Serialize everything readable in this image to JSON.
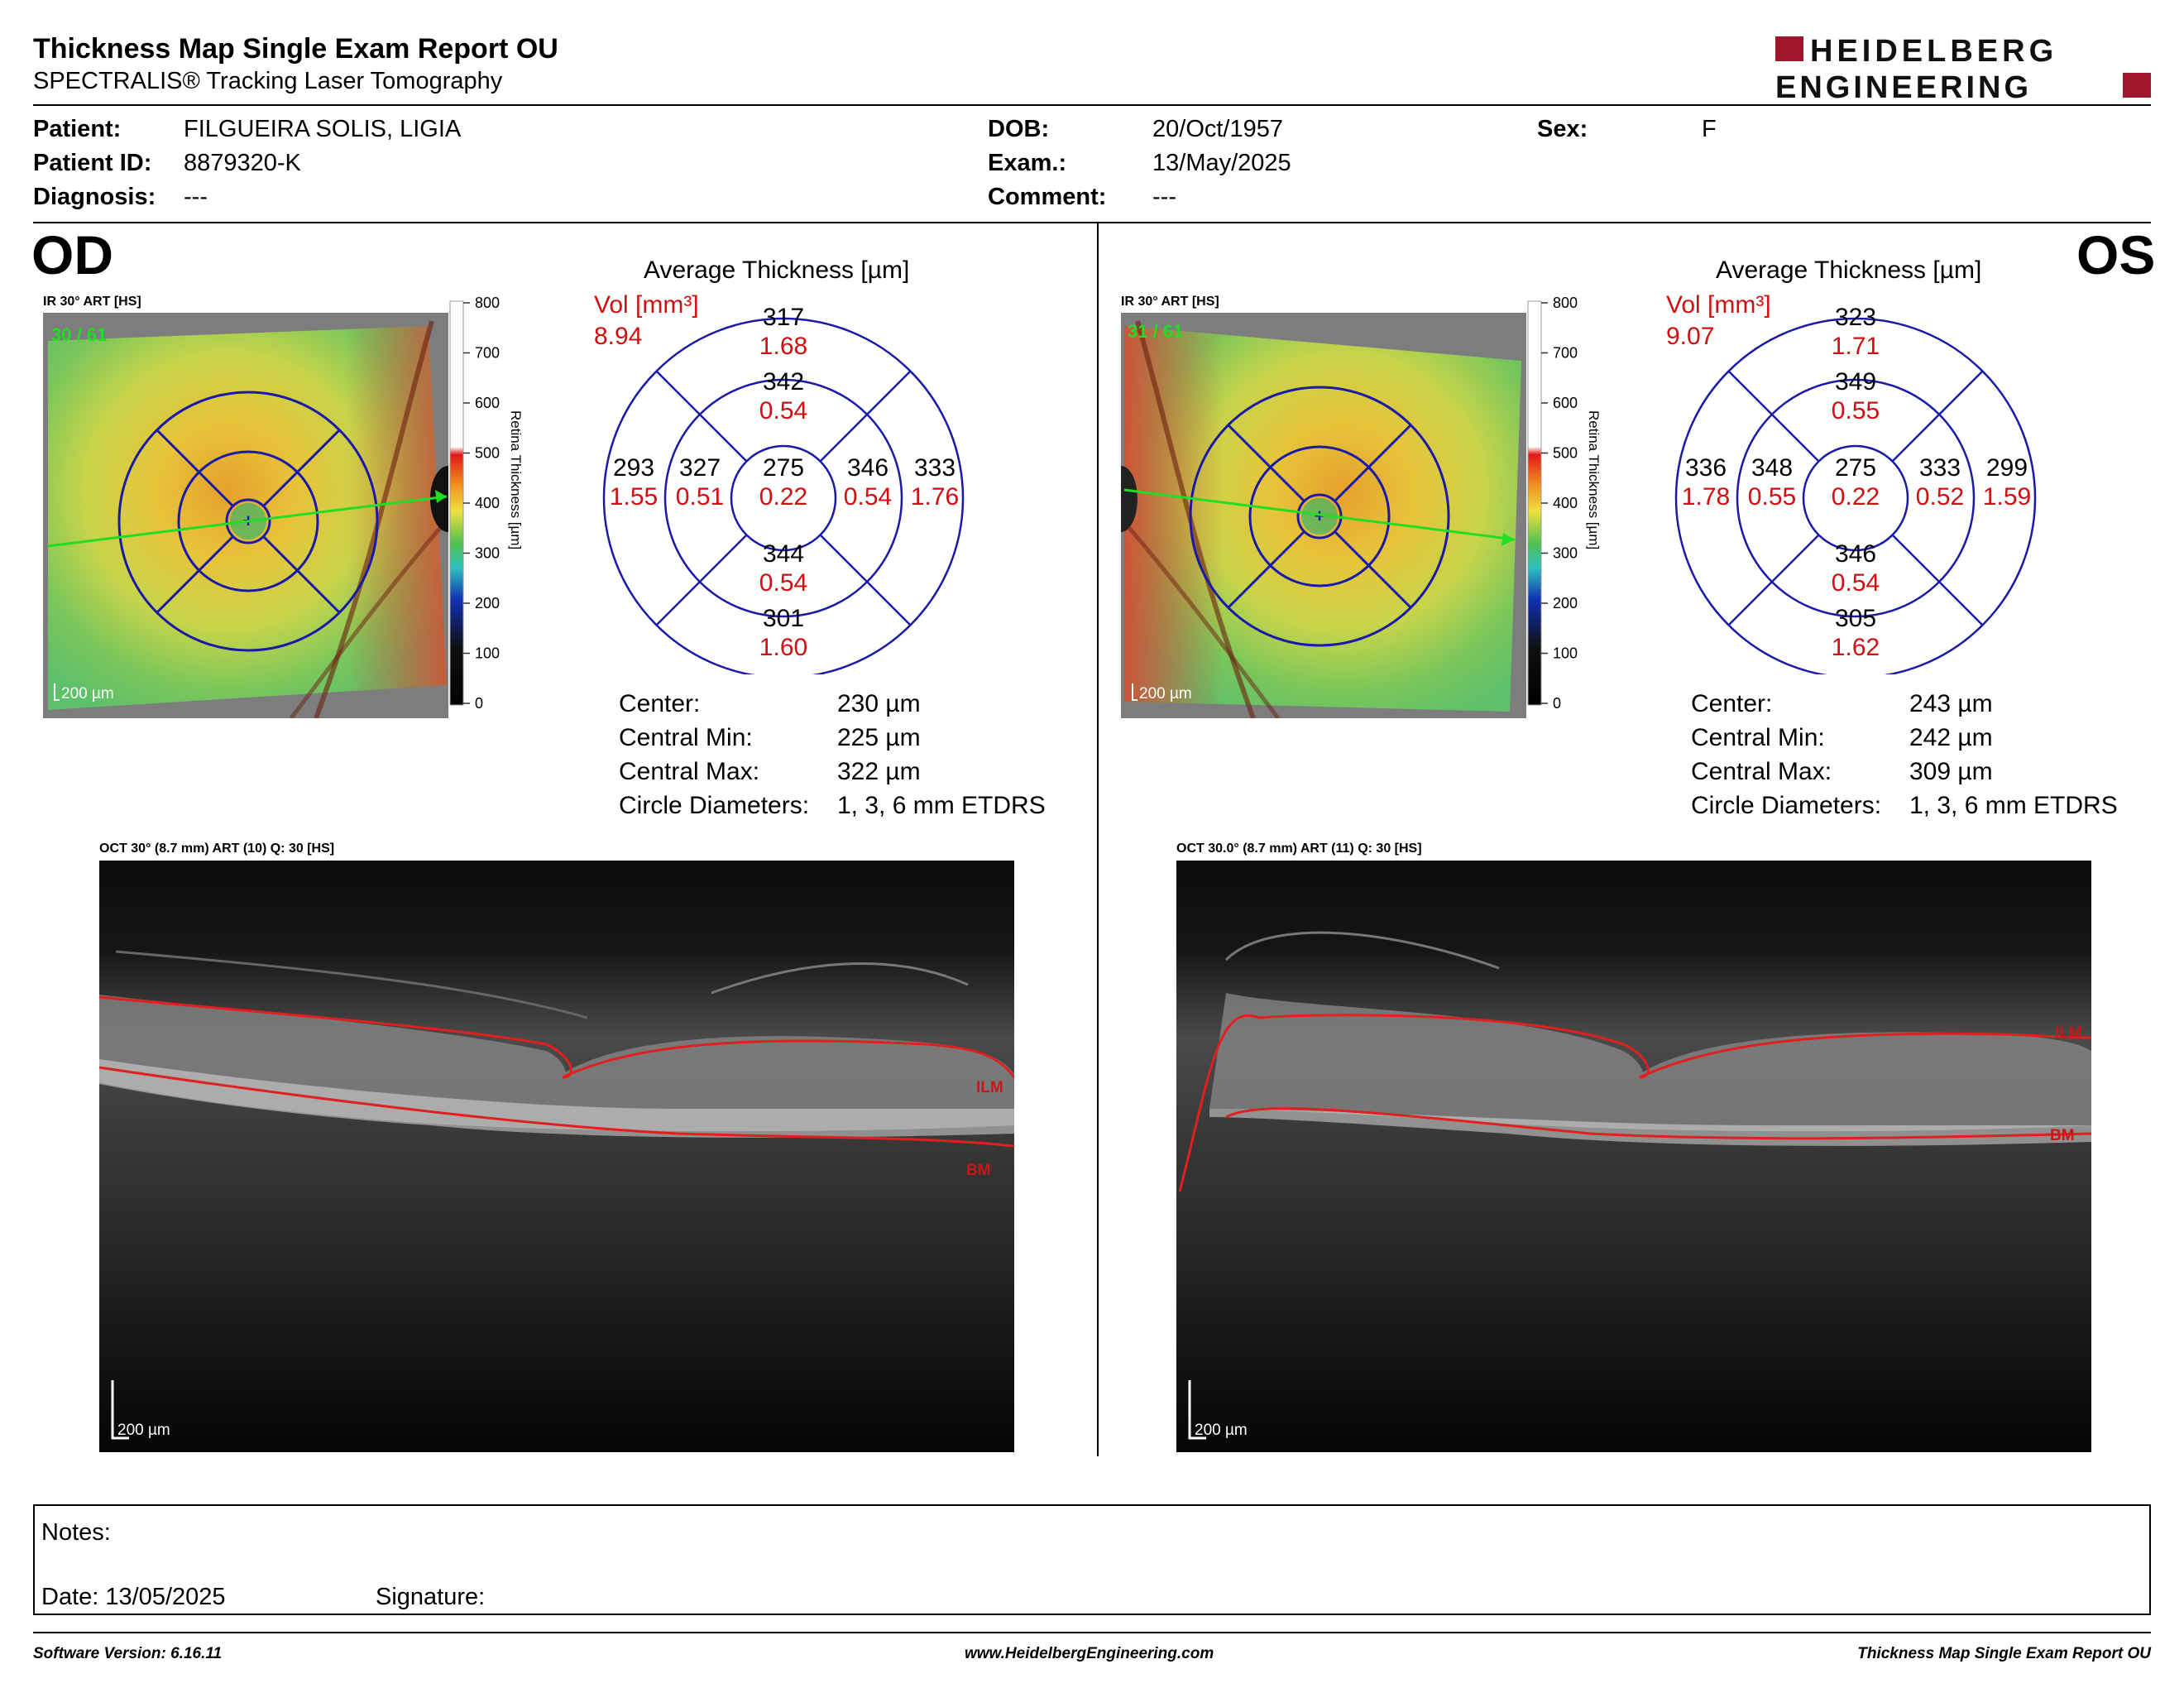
{
  "header": {
    "title": "Thickness Map Single Exam Report OU",
    "subtitle": "SPECTRALIS® Tracking Laser Tomography",
    "logo_line1": "HEIDELBERG",
    "logo_line2": "ENGINEERING"
  },
  "patient": {
    "patient_label": "Patient:",
    "patient_value": "FILGUEIRA SOLIS, LIGIA",
    "id_label": "Patient ID:",
    "id_value": "8879320-K",
    "diagnosis_label": "Diagnosis:",
    "diagnosis_value": "---",
    "dob_label": "DOB:",
    "dob_value": "20/Oct/1957",
    "exam_label": "Exam.:",
    "exam_value": "13/May/2025",
    "comment_label": "Comment:",
    "comment_value": "---",
    "sex_label": "Sex:",
    "sex_value": "F"
  },
  "colorscale": {
    "ticks": [
      "800",
      "700",
      "600",
      "500",
      "400",
      "300",
      "200",
      "100",
      "0"
    ],
    "title": "Retina  Thickness [µm]"
  },
  "od": {
    "eye": "OD",
    "ir_label": "IR 30° ART [HS]",
    "frames": "30 / 61",
    "scale": "200 µm",
    "avg_title": "Average Thickness [µm]",
    "vol_label": "Vol [mm³]",
    "vol_total": "8.94",
    "sectors": {
      "outer_sup_t": "317",
      "outer_sup_v": "1.68",
      "inner_sup_t": "342",
      "inner_sup_v": "0.54",
      "outer_temp_t": "293",
      "outer_temp_v": "1.55",
      "inner_temp_t": "327",
      "inner_temp_v": "0.51",
      "center_t": "275",
      "center_v": "0.22",
      "inner_nas_t": "346",
      "inner_nas_v": "0.54",
      "outer_nas_t": "333",
      "outer_nas_v": "1.76",
      "inner_inf_t": "344",
      "inner_inf_v": "0.54",
      "outer_inf_t": "301",
      "outer_inf_v": "1.60"
    },
    "stats": {
      "center_label": "Center:",
      "center_value": "230 µm",
      "min_label": "Central Min:",
      "min_value": "225 µm",
      "max_label": "Central Max:",
      "max_value": "322 µm",
      "diam_label": "Circle Diameters:",
      "diam_value": "1, 3, 6 mm ETDRS"
    },
    "oct_label": "OCT 30° (8.7 mm) ART (10) Q: 30 [HS]",
    "oct_scale": "200 µm",
    "ilm": "ILM",
    "bm": "BM"
  },
  "os": {
    "eye": "OS",
    "ir_label": "IR 30° ART [HS]",
    "frames": "31 / 61",
    "scale": "200 µm",
    "avg_title": "Average Thickness [µm]",
    "vol_label": "Vol [mm³]",
    "vol_total": "9.07",
    "sectors": {
      "outer_sup_t": "323",
      "outer_sup_v": "1.71",
      "inner_sup_t": "349",
      "inner_sup_v": "0.55",
      "outer_temp_t": "336",
      "outer_temp_v": "1.78",
      "inner_temp_t": "348",
      "inner_temp_v": "0.55",
      "center_t": "275",
      "center_v": "0.22",
      "inner_nas_t": "333",
      "inner_nas_v": "0.52",
      "outer_nas_t": "299",
      "outer_nas_v": "1.59",
      "inner_inf_t": "346",
      "inner_inf_v": "0.54",
      "outer_inf_t": "305",
      "outer_inf_v": "1.62"
    },
    "stats": {
      "center_label": "Center:",
      "center_value": "243 µm",
      "min_label": "Central Min:",
      "min_value": "242 µm",
      "max_label": "Central Max:",
      "max_value": "309 µm",
      "diam_label": "Circle Diameters:",
      "diam_value": "1, 3, 6 mm ETDRS"
    },
    "oct_label": "OCT 30.0° (8.7 mm) ART (11) Q: 30 [HS]",
    "oct_scale": "200 µm",
    "ilm": "ILM",
    "bm": "BM"
  },
  "notes": {
    "notes_label": "Notes:",
    "date_label": "Date: 13/05/2025",
    "signature_label": "Signature:"
  },
  "footer": {
    "software": "Software Version: 6.16.11",
    "website": "www.HeidelbergEngineering.com",
    "report": "Thickness Map Single Exam Report OU"
  },
  "colors": {
    "etdrs_line": "#1a1aa8",
    "volume_red": "#d01010",
    "brand_red": "#a0172b",
    "frame_green": "#22dd22"
  }
}
